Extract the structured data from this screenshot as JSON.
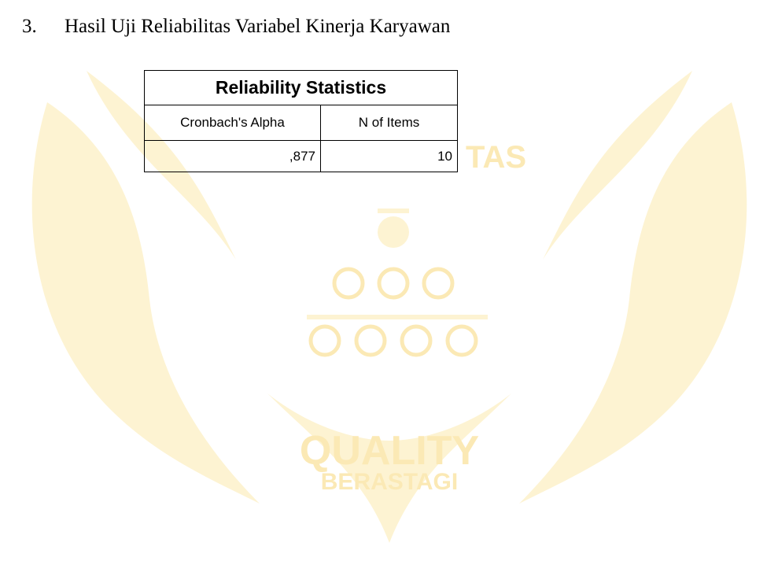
{
  "heading": {
    "number": "3.",
    "text": "Hasil Uji Reliabilitas Variabel Kinerja Karyawan"
  },
  "table": {
    "title": "Reliability Statistics",
    "columns": [
      "Cronbach's Alpha",
      "N of Items"
    ],
    "rows": [
      [
        ",877",
        10
      ]
    ]
  },
  "watermark": {
    "partial_text": "TAS",
    "line1": "QUALITY",
    "line2": "BERASTAGI"
  }
}
